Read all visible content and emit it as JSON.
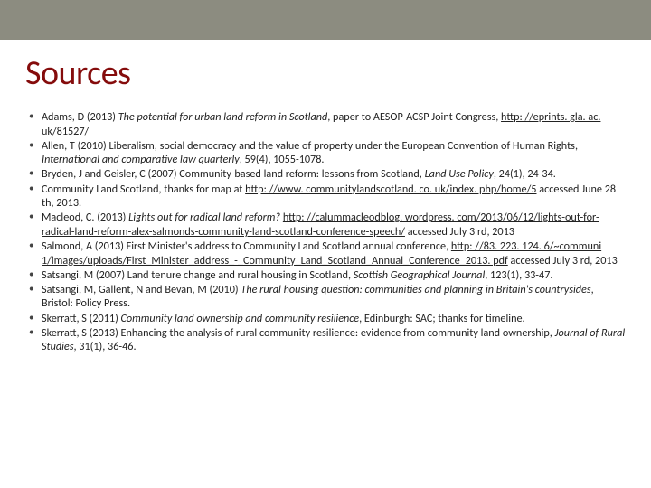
{
  "accent_color": "#850c0c",
  "topbar_color": "#8c8c80",
  "background_color": "#ffffff",
  "title_fontsize": 38,
  "body_fontsize": 12.2,
  "title": "Sources",
  "entries": {
    "e0": "Adams, D (2013) <span class=\"ital\">The potential for urban land reform in Scotland</span>, paper to AESOP-ACSP Joint Congress, <span class=\"ul\">http: //eprints. gla. ac. uk/81527/</span>",
    "e1": "Allen, T (2010) Liberalism, social democracy and the value of property under the European Convention of Human Rights, <span class=\"ital\">International and comparative law quarterly</span>, 59(4), 1055-1078.",
    "e2": "Bryden, J and Geisler, C (2007) Community-based land reform: lessons from Scotland, <span class=\"ital\">Land Use Policy</span>, 24(1), 24-34.",
    "e3": "Community Land Scotland, thanks for map at <span class=\"ul\">http: //www. communitylandscotland. co. uk/index. php/home/5</span> accessed June 28 th, 2013.",
    "e4": "Macleod, C. (2013) <span class=\"ital\">Lights out for radical land reform?</span> <span class=\"ul\">http: //calummacleodblog. wordpress. com/2013/06/12/lights-out-for-radical-land-reform-alex-salmonds-community-land-scotland-conference-speech/</span> accessed July 3 rd, 2013",
    "e5": "Salmond, A (2013) First Minister's address to Community Land Scotland annual conference, <span class=\"ul\">http: //83. 223. 124. 6/~communi 1/images/uploads/First_Minister_address_-_Community_Land_Scotland_Annual_Conference_2013. pdf</span> accessed July 3 rd, 2013",
    "e6": "Satsangi, M (2007) Land tenure change and rural housing in Scotland, <span class=\"ital\">Scottish Geographical Journal</span>, 123(1), 33-47.",
    "e7": "Satsangi, M, Gallent, N and Bevan, M (2010) <span class=\"ital\">The rural housing question: communities and planning in Britain's countrysides</span>, Bristol: Policy Press.",
    "e8": "Skerratt, S (2011) <span class=\"ital\">Community land ownership and community resilience</span>, Edinburgh: SAC; thanks for timeline.",
    "e9": "Skerratt, S (2013) Enhancing the analysis of rural community resilience: evidence from community land ownership, <span class=\"ital\">Journal of Rural Studies</span>, 31(1), 36-46."
  }
}
